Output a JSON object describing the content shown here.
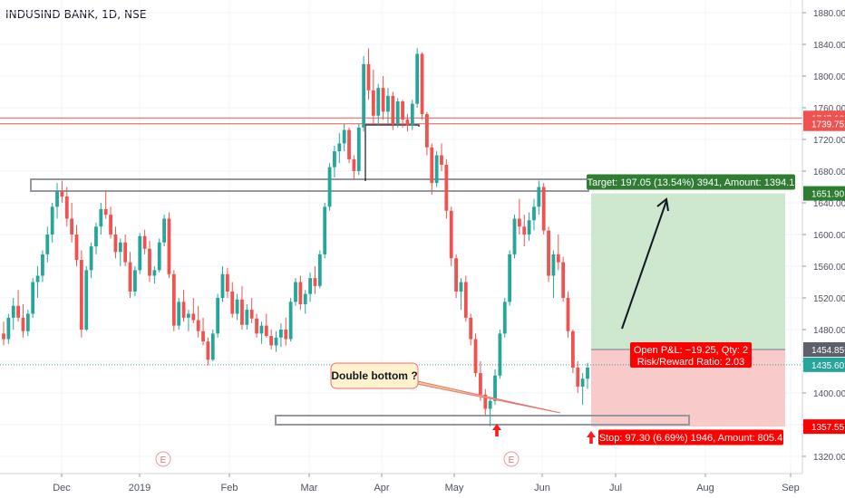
{
  "chart_data": {
    "type": "candlestick",
    "title": "INDUSIND BANK, 1D, NSE",
    "y_axis": {
      "ylim": [
        1300,
        1900
      ],
      "ticks": [
        1320,
        1360,
        1400,
        1440,
        1480,
        1520,
        1560,
        1600,
        1640,
        1680,
        1720,
        1760,
        1800,
        1840,
        1880
      ],
      "side": "right"
    },
    "x_axis": {
      "tick_labels": [
        "Dec",
        "2019",
        "Feb",
        "Mar",
        "Apr",
        "May",
        "Jun",
        "Jul",
        "Aug",
        "Sep"
      ]
    },
    "price_badges": [
      {
        "label": "1747.10",
        "value": 1747.1,
        "color": "#ef5350"
      },
      {
        "label": "1739.75",
        "value": 1739.75,
        "color": "#ef5350"
      },
      {
        "label": "1651.90",
        "value": 1651.9,
        "color": "#2e7d32"
      },
      {
        "label": "1454.85",
        "value": 1454.85,
        "color": "#5d606b"
      },
      {
        "label": "1435.60",
        "value": 1435.6,
        "color": "#26a69a"
      },
      {
        "label": "1357.55",
        "value": 1357.55,
        "color": "#ff0000"
      }
    ],
    "horizontal_lines": [
      {
        "value": 1747.1,
        "color": "#ef5350"
      },
      {
        "value": 1739.75,
        "color": "#ef5350"
      },
      {
        "value": 1435.6,
        "color": "#26a69a",
        "style": "dotted"
      }
    ],
    "earnings_markers": [
      "E",
      "E"
    ],
    "position": {
      "entry": 1454.85,
      "target": 1651.9,
      "stop": 1357.55,
      "target_label": "Target: 197.05 (13.54%) 3941, Amount: 1394.1",
      "stop_label": "Stop: 97.30 (6.69%) 1946, Amount: 805.4",
      "pnl_label": "Open P&L: −19.25, Qty: 2",
      "rr_label": "Risk/Reward Ratio: 2.03"
    },
    "annotation": {
      "text": "Double bottom ?"
    },
    "candles": [
      [
        1475,
        1490,
        1460,
        1468
      ],
      [
        1468,
        1500,
        1462,
        1495
      ],
      [
        1495,
        1520,
        1480,
        1510
      ],
      [
        1510,
        1530,
        1490,
        1495
      ],
      [
        1495,
        1512,
        1470,
        1478
      ],
      [
        1478,
        1505,
        1472,
        1500
      ],
      [
        1500,
        1545,
        1495,
        1540
      ],
      [
        1540,
        1560,
        1520,
        1548
      ],
      [
        1548,
        1580,
        1540,
        1575
      ],
      [
        1575,
        1610,
        1565,
        1600
      ],
      [
        1600,
        1640,
        1590,
        1635
      ],
      [
        1635,
        1665,
        1620,
        1655
      ],
      [
        1655,
        1668,
        1640,
        1648
      ],
      [
        1648,
        1660,
        1610,
        1620
      ],
      [
        1620,
        1640,
        1590,
        1600
      ],
      [
        1600,
        1612,
        1560,
        1568
      ],
      [
        1568,
        1580,
        1470,
        1480
      ],
      [
        1480,
        1560,
        1478,
        1555
      ],
      [
        1555,
        1590,
        1545,
        1585
      ],
      [
        1585,
        1615,
        1575,
        1610
      ],
      [
        1610,
        1640,
        1600,
        1632
      ],
      [
        1632,
        1655,
        1620,
        1625
      ],
      [
        1625,
        1635,
        1595,
        1600
      ],
      [
        1600,
        1610,
        1570,
        1578
      ],
      [
        1578,
        1595,
        1560,
        1590
      ],
      [
        1590,
        1600,
        1560,
        1565
      ],
      [
        1565,
        1578,
        1520,
        1528
      ],
      [
        1528,
        1560,
        1522,
        1555
      ],
      [
        1555,
        1602,
        1550,
        1598
      ],
      [
        1598,
        1606,
        1575,
        1582
      ],
      [
        1582,
        1592,
        1540,
        1548
      ],
      [
        1548,
        1560,
        1538,
        1555
      ],
      [
        1555,
        1595,
        1552,
        1590
      ],
      [
        1590,
        1625,
        1585,
        1620
      ],
      [
        1620,
        1628,
        1545,
        1550
      ],
      [
        1550,
        1555,
        1478,
        1485
      ],
      [
        1485,
        1520,
        1480,
        1515
      ],
      [
        1515,
        1530,
        1490,
        1495
      ],
      [
        1495,
        1505,
        1478,
        1500
      ],
      [
        1500,
        1520,
        1488,
        1492
      ],
      [
        1492,
        1510,
        1470,
        1478
      ],
      [
        1478,
        1495,
        1460,
        1465
      ],
      [
        1465,
        1470,
        1435,
        1442
      ],
      [
        1442,
        1480,
        1440,
        1475
      ],
      [
        1475,
        1525,
        1470,
        1520
      ],
      [
        1520,
        1560,
        1515,
        1550
      ],
      [
        1550,
        1558,
        1520,
        1528
      ],
      [
        1528,
        1540,
        1495,
        1500
      ],
      [
        1500,
        1525,
        1492,
        1518
      ],
      [
        1518,
        1535,
        1480,
        1486
      ],
      [
        1486,
        1512,
        1480,
        1505
      ],
      [
        1505,
        1520,
        1488,
        1494
      ],
      [
        1494,
        1500,
        1470,
        1475
      ],
      [
        1475,
        1490,
        1462,
        1485
      ],
      [
        1485,
        1500,
        1470,
        1472
      ],
      [
        1472,
        1480,
        1455,
        1460
      ],
      [
        1460,
        1478,
        1452,
        1470
      ],
      [
        1470,
        1488,
        1458,
        1480
      ],
      [
        1480,
        1495,
        1460,
        1468
      ],
      [
        1468,
        1520,
        1465,
        1515
      ],
      [
        1515,
        1545,
        1510,
        1540
      ],
      [
        1540,
        1548,
        1505,
        1512
      ],
      [
        1512,
        1530,
        1500,
        1525
      ],
      [
        1525,
        1552,
        1515,
        1545
      ],
      [
        1545,
        1560,
        1525,
        1535
      ],
      [
        1535,
        1580,
        1532,
        1575
      ],
      [
        1575,
        1640,
        1570,
        1635
      ],
      [
        1635,
        1690,
        1630,
        1685
      ],
      [
        1685,
        1712,
        1672,
        1705
      ],
      [
        1705,
        1728,
        1690,
        1715
      ],
      [
        1715,
        1740,
        1705,
        1732
      ],
      [
        1732,
        1735,
        1690,
        1695
      ],
      [
        1695,
        1700,
        1670,
        1680
      ],
      [
        1680,
        1740,
        1675,
        1735
      ],
      [
        1735,
        1825,
        1730,
        1815
      ],
      [
        1815,
        1835,
        1770,
        1782
      ],
      [
        1782,
        1808,
        1740,
        1750
      ],
      [
        1750,
        1790,
        1738,
        1785
      ],
      [
        1785,
        1800,
        1745,
        1755
      ],
      [
        1755,
        1785,
        1740,
        1775
      ],
      [
        1775,
        1780,
        1732,
        1740
      ],
      [
        1740,
        1772,
        1735,
        1768
      ],
      [
        1768,
        1770,
        1735,
        1745
      ],
      [
        1745,
        1752,
        1730,
        1738
      ],
      [
        1738,
        1770,
        1732,
        1765
      ],
      [
        1765,
        1835,
        1760,
        1828
      ],
      [
        1828,
        1830,
        1745,
        1752
      ],
      [
        1752,
        1755,
        1700,
        1710
      ],
      [
        1710,
        1715,
        1650,
        1665
      ],
      [
        1665,
        1705,
        1660,
        1700
      ],
      [
        1700,
        1715,
        1680,
        1688
      ],
      [
        1688,
        1695,
        1620,
        1630
      ],
      [
        1630,
        1635,
        1560,
        1570
      ],
      [
        1570,
        1575,
        1520,
        1528
      ],
      [
        1528,
        1545,
        1505,
        1540
      ],
      [
        1540,
        1548,
        1490,
        1495
      ],
      [
        1495,
        1500,
        1460,
        1468
      ],
      [
        1468,
        1475,
        1420,
        1425
      ],
      [
        1425,
        1440,
        1390,
        1398
      ],
      [
        1398,
        1405,
        1372,
        1380
      ],
      [
        1380,
        1395,
        1358,
        1390
      ],
      [
        1390,
        1430,
        1385,
        1422
      ],
      [
        1422,
        1480,
        1418,
        1475
      ],
      [
        1475,
        1520,
        1470,
        1515
      ],
      [
        1515,
        1580,
        1510,
        1575
      ],
      [
        1575,
        1625,
        1570,
        1620
      ],
      [
        1620,
        1645,
        1600,
        1610
      ],
      [
        1610,
        1625,
        1585,
        1600
      ],
      [
        1600,
        1628,
        1592,
        1618
      ],
      [
        1618,
        1645,
        1605,
        1635
      ],
      [
        1635,
        1668,
        1625,
        1660
      ],
      [
        1660,
        1665,
        1600,
        1605
      ],
      [
        1605,
        1610,
        1540,
        1548
      ],
      [
        1548,
        1580,
        1520,
        1575
      ],
      [
        1575,
        1600,
        1555,
        1565
      ],
      [
        1565,
        1572,
        1515,
        1520
      ],
      [
        1520,
        1528,
        1470,
        1478
      ],
      [
        1478,
        1480,
        1425,
        1432
      ],
      [
        1432,
        1440,
        1400,
        1408
      ],
      [
        1408,
        1425,
        1385,
        1418
      ],
      [
        1418,
        1438,
        1405,
        1432
      ]
    ]
  }
}
